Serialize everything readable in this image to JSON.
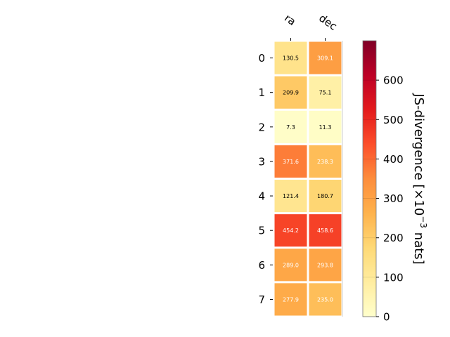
{
  "chart_data": {
    "type": "heatmap",
    "columns": [
      "ra",
      "dec"
    ],
    "rows": [
      "0",
      "1",
      "2",
      "3",
      "4",
      "5",
      "6",
      "7"
    ],
    "values": [
      [
        130.5,
        309.1
      ],
      [
        209.9,
        75.1
      ],
      [
        7.3,
        11.3
      ],
      [
        371.6,
        238.3
      ],
      [
        121.4,
        180.7
      ],
      [
        454.2,
        458.6
      ],
      [
        289.0,
        293.8
      ],
      [
        277.9,
        235.0
      ]
    ],
    "value_labels": [
      [
        "130.5",
        "309.1"
      ],
      [
        "209.9",
        "75.1"
      ],
      [
        "7.3",
        "11.3"
      ],
      [
        "371.6",
        "238.3"
      ],
      [
        "121.4",
        "180.7"
      ],
      [
        "454.2",
        "458.6"
      ],
      [
        "289.0",
        "293.8"
      ],
      [
        "277.9",
        "235.0"
      ]
    ],
    "colormap": "YlOrRd",
    "colorbar": {
      "label_main": "JS-divergence [×10",
      "label_exp": "−3",
      "label_tail": " nats]",
      "range": [
        0,
        700
      ],
      "ticks": [
        0,
        100,
        200,
        300,
        400,
        500,
        600
      ],
      "tick_labels": [
        "0",
        "100",
        "200",
        "300",
        "400",
        "500",
        "600"
      ]
    },
    "grid": false
  }
}
